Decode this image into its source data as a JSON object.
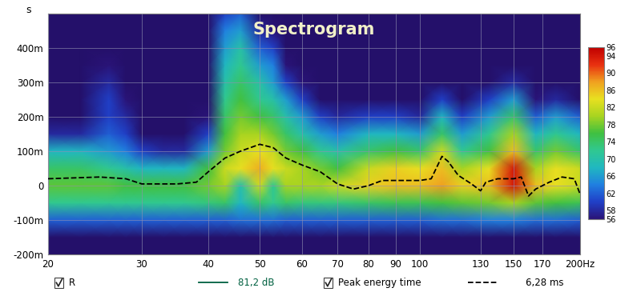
{
  "chart_data": {
    "type": "heatmap",
    "title": "Spectrogram",
    "y_label": "s",
    "log": "x",
    "grid": true,
    "xlim": [
      20,
      200
    ],
    "xticks": [
      20,
      30,
      40,
      50,
      60,
      70,
      80,
      90,
      100,
      130,
      150,
      170,
      {
        "value": 200,
        "label": "200Hz"
      }
    ],
    "ylim": [
      -0.2,
      0.5
    ],
    "yticks": [
      {
        "value": -0.2,
        "label": "-200m"
      },
      {
        "value": -0.1,
        "label": "-100m"
      },
      0,
      {
        "value": 0.1,
        "label": "100m"
      },
      {
        "value": 0.2,
        "label": "200m"
      },
      {
        "value": 0.3,
        "label": "300m"
      },
      {
        "value": 0.4,
        "label": "400m"
      }
    ],
    "x": [
      20,
      23,
      26,
      28,
      30,
      33,
      36,
      40,
      43,
      46,
      50,
      53,
      56,
      60,
      65,
      70,
      80,
      90,
      100,
      110,
      120,
      135,
      150,
      165,
      180,
      200
    ],
    "y": [
      -0.2,
      -0.15,
      -0.1,
      -0.05,
      0,
      0.05,
      0.1,
      0.15,
      0.2,
      0.25,
      0.3,
      0.35,
      0.4,
      0.45,
      0.5
    ],
    "cells": [
      [
        50,
        50,
        50,
        50,
        50,
        50,
        50,
        50,
        50,
        50,
        50,
        50,
        50,
        50,
        50,
        50,
        50,
        50,
        50,
        50,
        50,
        50,
        50,
        50,
        50,
        50
      ],
      [
        50,
        50,
        50,
        50,
        50,
        50,
        50,
        50,
        50,
        50,
        50,
        50,
        50,
        50,
        50,
        50,
        50,
        50,
        50,
        50,
        50,
        50,
        50,
        50,
        50,
        50
      ],
      [
        62,
        62,
        62,
        62,
        62,
        62,
        62,
        62,
        62,
        63,
        63,
        63,
        62,
        62,
        62,
        62,
        62,
        62,
        62,
        63,
        63,
        64,
        64,
        63,
        63,
        62
      ],
      [
        72,
        72,
        72,
        72,
        72,
        72,
        72,
        73,
        74,
        68,
        74,
        72,
        74,
        73,
        73,
        73,
        74,
        75,
        75,
        76,
        77,
        78,
        80,
        77,
        76,
        75
      ],
      [
        77,
        77,
        77,
        76,
        76,
        76,
        76,
        78,
        80,
        70,
        82,
        72,
        80,
        80,
        80,
        82,
        85,
        86,
        86,
        88,
        85,
        86,
        94,
        86,
        84,
        82
      ],
      [
        74,
        74,
        72,
        70,
        68,
        68,
        68,
        76,
        82,
        84,
        87,
        84,
        82,
        80,
        78,
        76,
        82,
        85,
        84,
        86,
        80,
        84,
        94,
        80,
        84,
        82
      ],
      [
        68,
        68,
        66,
        64,
        60,
        58,
        58,
        66,
        78,
        82,
        84,
        82,
        78,
        76,
        72,
        70,
        74,
        76,
        74,
        82,
        72,
        76,
        86,
        74,
        78,
        74
      ],
      [
        58,
        58,
        62,
        60,
        50,
        50,
        50,
        60,
        76,
        80,
        80,
        78,
        74,
        70,
        66,
        64,
        68,
        68,
        66,
        74,
        66,
        72,
        80,
        68,
        72,
        68
      ],
      [
        50,
        50,
        60,
        58,
        50,
        50,
        50,
        56,
        74,
        78,
        76,
        74,
        70,
        66,
        60,
        58,
        60,
        60,
        58,
        68,
        60,
        66,
        74,
        62,
        66,
        62
      ],
      [
        50,
        50,
        60,
        56,
        50,
        50,
        50,
        52,
        72,
        76,
        72,
        70,
        66,
        60,
        54,
        52,
        54,
        54,
        50,
        60,
        54,
        60,
        66,
        56,
        58,
        54
      ],
      [
        50,
        50,
        58,
        54,
        50,
        50,
        50,
        50,
        70,
        74,
        70,
        66,
        60,
        56,
        50,
        50,
        50,
        50,
        50,
        52,
        50,
        54,
        58,
        50,
        52,
        50
      ],
      [
        50,
        50,
        56,
        50,
        50,
        50,
        50,
        50,
        68,
        72,
        66,
        64,
        56,
        52,
        50,
        50,
        50,
        50,
        50,
        50,
        50,
        50,
        50,
        50,
        50,
        50
      ],
      [
        50,
        50,
        52,
        50,
        50,
        50,
        50,
        50,
        66,
        70,
        62,
        60,
        52,
        50,
        50,
        50,
        50,
        50,
        50,
        50,
        50,
        50,
        50,
        50,
        50,
        50
      ],
      [
        50,
        50,
        50,
        50,
        50,
        50,
        50,
        50,
        64,
        66,
        58,
        56,
        50,
        50,
        50,
        50,
        50,
        50,
        50,
        50,
        50,
        50,
        50,
        50,
        50,
        50
      ],
      [
        50,
        50,
        50,
        50,
        50,
        50,
        50,
        50,
        60,
        62,
        54,
        50,
        50,
        50,
        50,
        50,
        50,
        50,
        50,
        50,
        50,
        50,
        50,
        50,
        50,
        50
      ]
    ],
    "colorbar": {
      "range": [
        56,
        96
      ],
      "ticks": [
        56,
        58,
        62,
        66,
        70,
        74,
        78,
        82,
        86,
        90,
        94,
        96
      ]
    },
    "series": [
      {
        "name": "R",
        "value_label": "81,2 dB",
        "color": "#006040",
        "line_style": "solid"
      },
      {
        "name": "Peak energy time",
        "value_label": "6,28 ms",
        "color": "#000000",
        "line_style": "dashed",
        "x": [
          20,
          25,
          28,
          30,
          35,
          38,
          40,
          43,
          46,
          50,
          53,
          56,
          60,
          65,
          70,
          75,
          80,
          85,
          90,
          95,
          100,
          105,
          110,
          113,
          118,
          125,
          130,
          133,
          140,
          150,
          155,
          160,
          165,
          175,
          185,
          195,
          200
        ],
        "values": [
          0.02,
          0.025,
          0.02,
          0.005,
          0.005,
          0.01,
          0.04,
          0.08,
          0.1,
          0.12,
          0.11,
          0.08,
          0.06,
          0.04,
          0.005,
          -0.01,
          0.0,
          0.015,
          0.015,
          0.015,
          0.015,
          0.02,
          0.085,
          0.07,
          0.03,
          0.005,
          -0.015,
          0.01,
          0.02,
          0.02,
          0.025,
          -0.03,
          -0.01,
          0.01,
          0.025,
          0.02,
          -0.025
        ]
      }
    ]
  }
}
